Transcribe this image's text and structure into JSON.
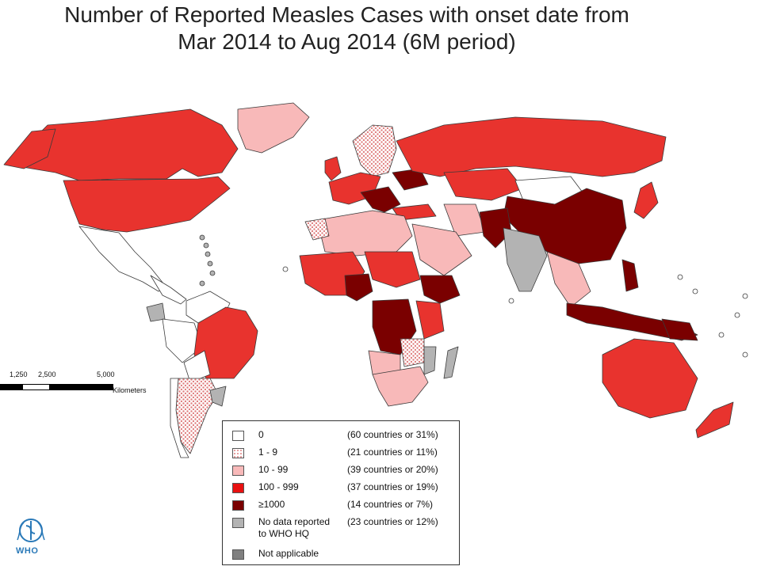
{
  "title": {
    "line1": "Number of Reported Measles Cases with onset date from",
    "line2": "Mar 2014 to Aug 2014 (6M period)"
  },
  "colors": {
    "zero": "#ffffff",
    "low": "#f6c8c8",
    "mid": "#f8b9b9",
    "high": "#e8332e",
    "very_high": "#7a0000",
    "no_data": "#b3b3b3",
    "not_applicable": "#808080",
    "border": "#3a3a3a"
  },
  "scale_bar": {
    "labels": [
      "1,250",
      "2,500",
      "5,000"
    ],
    "unit": "Kilometers"
  },
  "legend": {
    "items": [
      {
        "range": "0",
        "share": "(60 countries or 31%)",
        "class": "zero"
      },
      {
        "range": "1 - 9",
        "share": "(21 countries or 11%)",
        "class": "low"
      },
      {
        "range": "10 - 99",
        "share": "(39 countries or 20%)",
        "class": "mid"
      },
      {
        "range": "100 - 999",
        "share": "(37 countries or 19%)",
        "class": "high"
      },
      {
        "range": "≥1000",
        "share": "(14 countries or 7%)",
        "class": "very_high"
      },
      {
        "range": "No data reported\nto WHO HQ",
        "share": "(23 countries or 12%)",
        "class": "no_data"
      },
      {
        "range": "Not applicable",
        "share": "",
        "class": "not_applicable"
      }
    ]
  },
  "logo": {
    "text": "WHO"
  }
}
